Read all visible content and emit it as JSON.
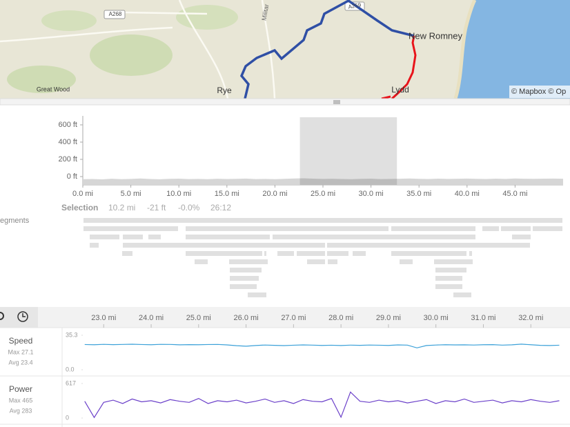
{
  "map": {
    "labels": [
      "A268",
      "Militar",
      "A259",
      "New Romney",
      "Great Wood",
      "Rye",
      "Lydd"
    ],
    "attribution": "© Mapbox © Op"
  },
  "selection": {
    "label": "Selection",
    "distance": "10.2 mi",
    "elevation": "-21 ft",
    "grade": "-0.0%",
    "time": "26:12",
    "range": [
      22.6,
      32.7
    ]
  },
  "segments_label": "egments",
  "chart_data": [
    {
      "type": "area",
      "color": "#d6d6d6",
      "x": [
        0,
        1,
        2,
        3,
        4,
        5,
        6,
        7,
        8,
        9,
        10,
        11,
        12,
        13,
        14,
        15,
        16,
        17,
        18,
        19,
        20,
        21,
        22,
        23,
        24,
        25,
        26,
        27,
        28,
        29,
        30,
        31,
        32,
        33,
        34,
        35,
        36,
        37,
        38,
        39,
        40,
        41,
        42,
        43,
        44,
        45,
        46,
        47,
        48,
        49,
        50
      ],
      "values": [
        -30,
        -28,
        -32,
        -25,
        -30,
        -27,
        -22,
        -28,
        -31,
        -26,
        -24,
        -29,
        -27,
        -30,
        -25,
        -28,
        -26,
        -23,
        -29,
        -27,
        -30,
        -26,
        -22,
        -20,
        -24,
        -27,
        -25,
        -28,
        -30,
        -26,
        -24,
        -29,
        -27,
        -25,
        -22,
        -26,
        -28,
        -24,
        -27,
        -25,
        -23,
        -26,
        -28,
        -24,
        -27,
        -22,
        -25,
        -26,
        -24,
        -23,
        -25
      ],
      "xlim": [
        0,
        50
      ],
      "ylim": [
        -96,
        688
      ],
      "xticks": [
        {
          "value": 0,
          "label": "0.0 mi"
        },
        {
          "value": 5,
          "label": "5.0 mi"
        },
        {
          "value": 10,
          "label": "10.0 mi"
        },
        {
          "value": 15,
          "label": "15.0 mi"
        },
        {
          "value": 20,
          "label": "20.0 mi"
        },
        {
          "value": 25,
          "label": "25.0 mi"
        },
        {
          "value": 30,
          "label": "30.0 mi"
        },
        {
          "value": 35,
          "label": "35.0 mi"
        },
        {
          "value": 40,
          "label": "40.0 mi"
        },
        {
          "value": 45,
          "label": "45.0 mi"
        }
      ],
      "yticks": [
        {
          "value": 0,
          "label": "0 ft"
        },
        {
          "value": 200,
          "label": "200 ft"
        },
        {
          "value": 400,
          "label": "400 ft"
        },
        {
          "value": 600,
          "label": "600 ft"
        }
      ]
    },
    {
      "type": "line",
      "title": "Speed",
      "max_label": "Max 27.1",
      "avg_label": "Avg 23.4",
      "color": "#3aa0d8",
      "x": [
        22.6,
        22.8,
        23.0,
        23.2,
        23.4,
        23.6,
        23.8,
        24.0,
        24.2,
        24.4,
        24.6,
        24.8,
        25.0,
        25.2,
        25.4,
        25.6,
        25.8,
        26.0,
        26.2,
        26.4,
        26.6,
        26.8,
        27.0,
        27.2,
        27.4,
        27.6,
        27.8,
        28.0,
        28.2,
        28.4,
        28.6,
        28.8,
        29.0,
        29.2,
        29.4,
        29.6,
        29.8,
        30.0,
        30.2,
        30.4,
        30.6,
        30.8,
        31.0,
        31.2,
        31.4,
        31.6,
        31.8,
        32.0,
        32.2,
        32.4,
        32.6
      ],
      "values": [
        25.8,
        25.6,
        26.0,
        25.7,
        25.9,
        26.1,
        25.8,
        25.6,
        26.0,
        25.9,
        25.5,
        25.7,
        25.6,
        25.8,
        25.9,
        25.4,
        24.6,
        24.1,
        24.8,
        25.3,
        25.0,
        24.7,
        25.1,
        25.4,
        25.2,
        24.9,
        25.1,
        24.8,
        25.2,
        25.0,
        25.3,
        25.1,
        24.9,
        25.4,
        25.2,
        22.4,
        24.8,
        25.3,
        25.6,
        25.4,
        25.5,
        25.3,
        25.6,
        25.7,
        25.2,
        25.5,
        26.2,
        25.6,
        25.0,
        24.8,
        25.1
      ],
      "xlim": [
        22.56,
        32.68
      ],
      "ylim": [
        0,
        35.3
      ],
      "xticks": [
        {
          "value": 23,
          "label": "23.0 mi"
        },
        {
          "value": 24,
          "label": "24.0 mi"
        },
        {
          "value": 25,
          "label": "25.0 mi"
        },
        {
          "value": 26,
          "label": "26.0 mi"
        },
        {
          "value": 27,
          "label": "27.0 mi"
        },
        {
          "value": 28,
          "label": "28.0 mi"
        },
        {
          "value": 29,
          "label": "29.0 mi"
        },
        {
          "value": 30,
          "label": "30.0 mi"
        },
        {
          "value": 31,
          "label": "31.0 mi"
        },
        {
          "value": 32,
          "label": "32.0 mi"
        }
      ],
      "yticks": [
        {
          "value": 0,
          "label": "0.0"
        },
        35.3
      ]
    },
    {
      "type": "line",
      "title": "Power",
      "max_label": "Max 465",
      "avg_label": "Avg 283",
      "color": "#6a3fc9",
      "x": [
        22.6,
        22.8,
        23.0,
        23.2,
        23.4,
        23.6,
        23.8,
        24.0,
        24.2,
        24.4,
        24.6,
        24.8,
        25.0,
        25.2,
        25.4,
        25.6,
        25.8,
        26.0,
        26.2,
        26.4,
        26.6,
        26.8,
        27.0,
        27.2,
        27.4,
        27.6,
        27.8,
        28.0,
        28.2,
        28.4,
        28.6,
        28.8,
        29.0,
        29.2,
        29.4,
        29.6,
        29.8,
        30.0,
        30.2,
        30.4,
        30.6,
        30.8,
        31.0,
        31.2,
        31.4,
        31.6,
        31.8,
        32.0,
        32.2,
        32.4,
        32.6
      ],
      "values": [
        300,
        10,
        280,
        320,
        260,
        340,
        290,
        310,
        270,
        330,
        300,
        280,
        350,
        260,
        310,
        290,
        320,
        270,
        300,
        340,
        280,
        310,
        260,
        330,
        300,
        290,
        350,
        15,
        465,
        300,
        280,
        320,
        290,
        310,
        270,
        300,
        330,
        260,
        310,
        290,
        340,
        280,
        300,
        320,
        270,
        310,
        290,
        330,
        300,
        280,
        310
      ],
      "xlim": [
        22.56,
        32.68
      ],
      "ylim": [
        0,
        617
      ],
      "yticks": [
        0,
        617
      ]
    }
  ]
}
